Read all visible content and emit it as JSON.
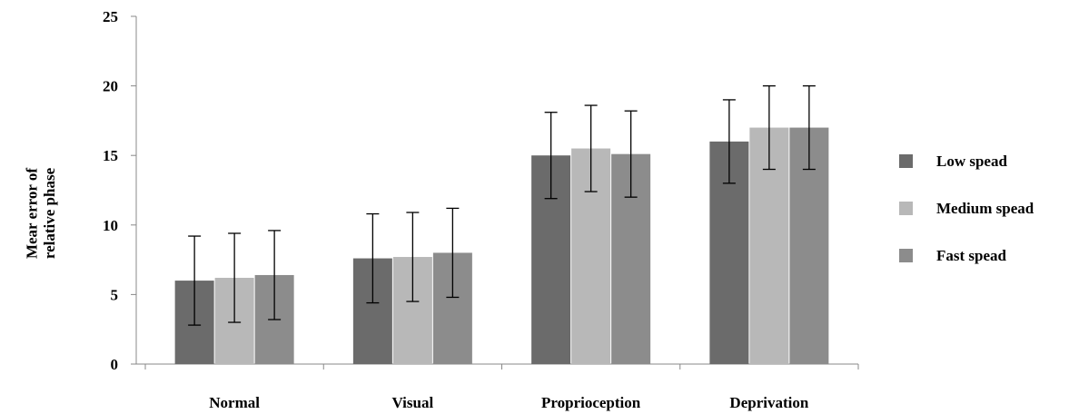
{
  "chart_data": {
    "type": "bar",
    "title": "",
    "xlabel": "",
    "ylabel": [
      "Mear error of",
      "relative phase"
    ],
    "ylim": [
      0,
      25
    ],
    "yticks": [
      0,
      5,
      10,
      15,
      20,
      25
    ],
    "categories": [
      "Normal",
      "Visual",
      "Proprioception",
      "Deprivation"
    ],
    "series": [
      {
        "name": "Low spead",
        "color": "#6b6b6b",
        "values": [
          6.0,
          7.6,
          15.0,
          16.0
        ],
        "errors": [
          3.2,
          3.2,
          3.1,
          3.0
        ]
      },
      {
        "name": "Medium spead",
        "color": "#b8b8b8",
        "values": [
          6.2,
          7.7,
          15.5,
          17.0
        ],
        "errors": [
          3.2,
          3.2,
          3.1,
          3.0
        ]
      },
      {
        "name": "Fast spead",
        "color": "#8c8c8c",
        "values": [
          6.4,
          8.0,
          15.1,
          17.0
        ],
        "errors": [
          3.2,
          3.2,
          3.1,
          3.0
        ]
      }
    ],
    "grid": false,
    "legend_position": "right"
  }
}
